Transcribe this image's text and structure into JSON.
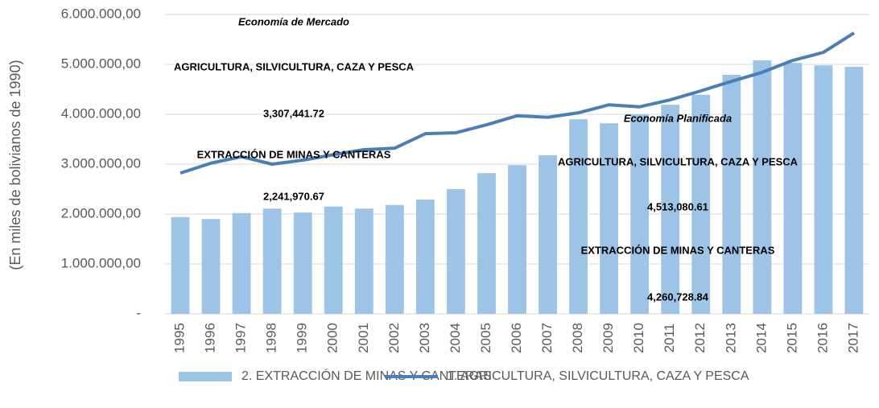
{
  "chart_data": {
    "type": "combo",
    "y_axis_label": "(En miles de bolivianos de 1990)",
    "categories": [
      "1995",
      "1996",
      "1997",
      "1998",
      "1999",
      "2000",
      "2001",
      "2002",
      "2003",
      "2004",
      "2005",
      "2006",
      "2007",
      "2008",
      "2009",
      "2010",
      "2011",
      "2012",
      "2013",
      "2014",
      "2015",
      "2016",
      "2017"
    ],
    "series": [
      {
        "name": "2. EXTRACCIÓN DE MINAS Y CANTERAS",
        "type": "bar",
        "color": "#9dc3e6",
        "values": [
          1940000,
          1900000,
          2020000,
          2110000,
          2030000,
          2150000,
          2110000,
          2180000,
          2290000,
          2500000,
          2820000,
          2980000,
          3180000,
          3900000,
          3820000,
          4000000,
          4190000,
          4390000,
          4790000,
          5080000,
          5030000,
          4980000,
          4950000
        ]
      },
      {
        "name": "1. AGRICULTURA, SILVICULTURA, CAZA Y PESCA",
        "type": "line",
        "color": "#4a7fb5",
        "values": [
          2820000,
          3020000,
          3150000,
          3000000,
          3080000,
          3190000,
          3290000,
          3320000,
          3610000,
          3630000,
          3790000,
          3970000,
          3940000,
          4030000,
          4190000,
          4150000,
          4290000,
          4470000,
          4660000,
          4840000,
          5080000,
          5240000,
          5630000
        ]
      }
    ],
    "annotations": [
      "Economía de Mercado",
      "AGRICULTURA, SILVICULTURA, CAZA Y PESCA",
      "3,307,441.72",
      "EXTRACCIÓN DE MINAS Y CANTERAS",
      "2,241,970.67",
      "Economía Planificada",
      "AGRICULTURA, SILVICULTURA, CAZA Y PESCA",
      "4,513,080.61",
      "EXTRACCIÓN DE MINAS Y CANTERAS",
      "4,260,728.84"
    ],
    "ylim": [
      0,
      6000000
    ],
    "yticks": [
      {
        "value": 0,
        "label": "-"
      },
      {
        "value": 1000000,
        "label": "1.000.000,00"
      },
      {
        "value": 2000000,
        "label": "2.000.000,00"
      },
      {
        "value": 3000000,
        "label": "3.000.000,00"
      },
      {
        "value": 4000000,
        "label": "4.000.000,00"
      },
      {
        "value": 5000000,
        "label": "5.000.000,00"
      },
      {
        "value": 6000000,
        "label": "6.000.000,00"
      }
    ],
    "grid": true,
    "legend": "bottom"
  }
}
